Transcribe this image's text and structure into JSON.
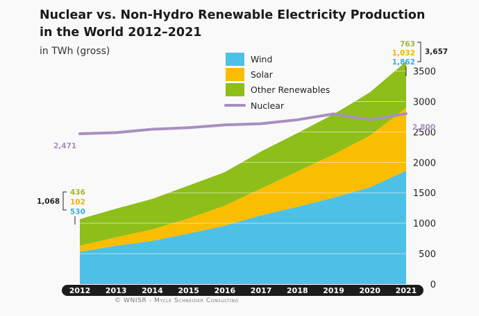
{
  "chart_data": {
    "type": "area",
    "title_line1": "Nuclear vs. Non-Hydro Renewable Electricity Production",
    "title_line2": "in the World 2012–2021",
    "ylabel": "in TWh (gross)",
    "credit": "© WNISR - Mycle Schneider Consulting",
    "ylim": [
      0,
      3700
    ],
    "yticks": [
      "0",
      "500",
      "1000",
      "1500",
      "2000",
      "2500",
      "3000",
      "3500"
    ],
    "categories": [
      "2012",
      "2013",
      "2014",
      "2015",
      "2016",
      "2017",
      "2018",
      "2019",
      "2020",
      "2021"
    ],
    "stacked_series": [
      {
        "name": "Wind",
        "color": "#4dc0e6",
        "values": [
          530,
          630,
          710,
          830,
          960,
          1130,
          1270,
          1420,
          1590,
          1862
        ]
      },
      {
        "name": "Solar",
        "color": "#fbbd00",
        "values": [
          102,
          140,
          190,
          250,
          330,
          440,
          580,
          710,
          850,
          1032
        ]
      },
      {
        "name": "Other Renewables",
        "color": "#8ebe1a",
        "values": [
          436,
          470,
          500,
          540,
          550,
          610,
          630,
          660,
          710,
          763
        ]
      }
    ],
    "line_series": {
      "name": "Nuclear",
      "color": "#a98ec2",
      "values": [
        2471,
        2489,
        2545,
        2570,
        2615,
        2636,
        2700,
        2796,
        2700,
        2800
      ]
    },
    "annotations": {
      "start_total": "1,068",
      "start_other": "436",
      "start_solar": "102",
      "start_wind": "530",
      "end_total": "3,657",
      "end_other": "763",
      "end_solar": "1,032",
      "end_wind": "1,862",
      "nuclear_start": "2,471",
      "nuclear_end": "2,800"
    },
    "colors": {
      "annot_other": "#a4b81c",
      "annot_solar": "#f3b100",
      "annot_wind": "#39ade0",
      "annot_nuclear": "#a98ec2"
    }
  }
}
